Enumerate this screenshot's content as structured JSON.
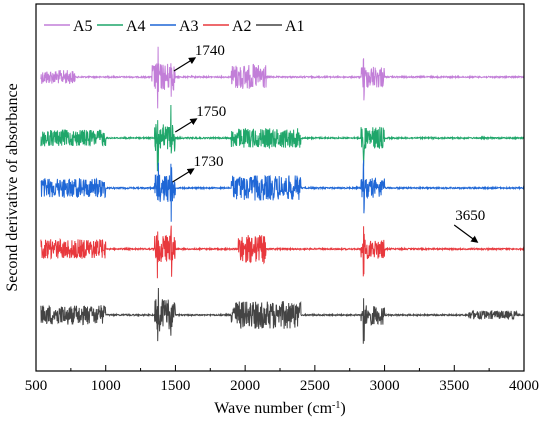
{
  "chart_data": {
    "type": "line",
    "title": "",
    "xlabel": "Wave number (cm",
    "xlabel_sup": "-1",
    "xlabel_close": ")",
    "ylabel": "Second derivative of absorbance",
    "xlim": [
      500,
      4000
    ],
    "x_ticks": [
      "500",
      "1000",
      "1500",
      "2000",
      "2500",
      "3000",
      "3500",
      "4000"
    ],
    "y_ticks_shown": false,
    "grid": false,
    "legend_position": "top-left",
    "series": [
      {
        "name": "A5",
        "color": "#c27ed8",
        "baseline_level": 5,
        "noise_regions": [
          [
            535,
            780,
            0.5
          ],
          [
            1330,
            1500,
            1.0
          ],
          [
            1900,
            2150,
            0.9
          ],
          [
            2830,
            3000,
            0.8
          ]
        ]
      },
      {
        "name": "A4",
        "color": "#1fa66a",
        "baseline_level": 4,
        "noise_regions": [
          [
            535,
            1000,
            0.6
          ],
          [
            1350,
            1500,
            1.0
          ],
          [
            1900,
            2400,
            0.7
          ],
          [
            2830,
            3000,
            0.8
          ]
        ]
      },
      {
        "name": "A3",
        "color": "#1f67d6",
        "baseline_level": 3,
        "noise_regions": [
          [
            535,
            1000,
            0.7
          ],
          [
            1350,
            1500,
            1.0
          ],
          [
            1900,
            2400,
            0.9
          ],
          [
            2830,
            3000,
            0.7
          ]
        ]
      },
      {
        "name": "A2",
        "color": "#e8383d",
        "baseline_level": 2,
        "noise_regions": [
          [
            535,
            1000,
            0.7
          ],
          [
            1350,
            1500,
            1.0
          ],
          [
            1950,
            2150,
            1.0
          ],
          [
            2830,
            3000,
            0.7
          ]
        ]
      },
      {
        "name": "A1",
        "color": "#444444",
        "baseline_level": 1,
        "noise_regions": [
          [
            535,
            1000,
            0.7
          ],
          [
            1350,
            1500,
            1.2
          ],
          [
            1900,
            2400,
            1.0
          ],
          [
            2830,
            3000,
            0.7
          ],
          [
            3600,
            3950,
            0.3
          ]
        ]
      }
    ],
    "annotations": [
      {
        "text": "1740",
        "series": "A5",
        "x": 1740
      },
      {
        "text": "1750",
        "series": "A4",
        "x": 1750
      },
      {
        "text": "1730",
        "series": "A3",
        "x": 1730
      },
      {
        "text": "3650",
        "series": "A2",
        "x": 3650
      }
    ]
  }
}
